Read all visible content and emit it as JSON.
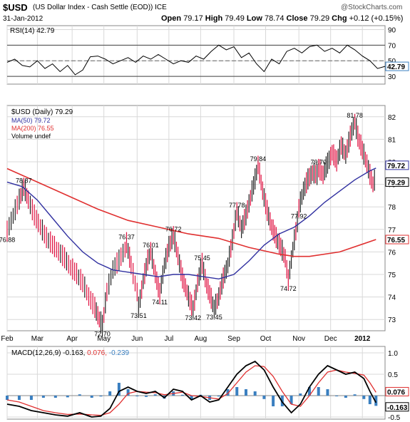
{
  "header": {
    "symbol": "$USD",
    "description": "(US Dollar Index - Cash Settle (EOD)) ICE",
    "watermark": "@StockCharts.com",
    "date": "31-Jan-2012",
    "quote_labels": {
      "open": "Open",
      "high": "High",
      "low": "Low",
      "close": "Close",
      "chg": "Chg"
    },
    "quote_values": {
      "open": "79.17",
      "high": "79.49",
      "low": "78.74",
      "close": "79.29",
      "chg": "+0.12 (+0.15%)"
    }
  },
  "colors": {
    "price_up": "#b0b0b0",
    "price_down": "#e01040",
    "ma50": "#3030a0",
    "ma200": "#e03030",
    "macd": "#000000",
    "signal": "#e03030",
    "histogram": "#3a7fc0",
    "rsi": "#000000",
    "grid": "#d8d8d8"
  },
  "chart_data": [
    {
      "type": "line",
      "panel": "rsi",
      "legend": "RSI(14) 42.79",
      "ylim": [
        20,
        95
      ],
      "levels": [
        30,
        70
      ],
      "yticks": [
        "90",
        "70",
        "50",
        "30"
      ],
      "last_label": "42.79",
      "x": [
        0,
        5,
        10,
        15,
        20,
        25,
        30,
        35,
        40,
        45,
        50,
        55,
        60,
        65,
        70,
        75,
        80,
        85,
        90,
        95,
        100,
        105,
        110,
        115,
        120,
        125,
        130,
        135,
        140,
        145,
        150,
        155,
        160,
        165,
        170,
        175,
        180,
        185,
        190,
        195,
        200,
        205,
        210,
        215,
        220,
        225,
        230,
        235,
        240,
        245,
        250
      ],
      "values": [
        48,
        52,
        44,
        42,
        50,
        40,
        46,
        36,
        44,
        32,
        38,
        55,
        56,
        52,
        46,
        50,
        54,
        48,
        56,
        52,
        58,
        52,
        46,
        50,
        48,
        56,
        52,
        62,
        70,
        64,
        68,
        54,
        60,
        46,
        36,
        52,
        46,
        62,
        66,
        60,
        68,
        70,
        62,
        66,
        60,
        70,
        64,
        56,
        50,
        40,
        42.79
      ]
    },
    {
      "type": "line",
      "panel": "price",
      "legend": {
        "main": "$USD (Daily) 79.29",
        "ma50": "MA(50) 79.72",
        "ma200": "MA(200) 76.55",
        "volume": "Volume undef"
      },
      "ylim": [
        72.5,
        82.5
      ],
      "yticks": [
        "82",
        "81",
        "80",
        "79",
        "78",
        "77",
        "76",
        "75",
        "74",
        "73"
      ],
      "xticks": [
        {
          "x": 0,
          "label": "Feb"
        },
        {
          "x": 20,
          "label": "Mar"
        },
        {
          "x": 43,
          "label": "Apr"
        },
        {
          "x": 64,
          "label": "May"
        },
        {
          "x": 86,
          "label": "Jun"
        },
        {
          "x": 107,
          "label": "Jul"
        },
        {
          "x": 128,
          "label": "Aug"
        },
        {
          "x": 150,
          "label": "Sep"
        },
        {
          "x": 171,
          "label": "Oct"
        },
        {
          "x": 193,
          "label": "Nov"
        },
        {
          "x": 214,
          "label": "Dec"
        },
        {
          "x": 235,
          "label": "2012"
        }
      ],
      "right_labels": {
        "ma50": "79.72",
        "close": "79.29",
        "ma200": "76.55"
      },
      "annotations": [
        {
          "x": 0,
          "y": 76.88,
          "label": "76.88"
        },
        {
          "x": 11,
          "y": 78.87,
          "label": "78.87"
        },
        {
          "x": 63,
          "y": 72.7,
          "label": "72.70"
        },
        {
          "x": 79,
          "y": 76.37,
          "label": "76.37"
        },
        {
          "x": 87,
          "y": 73.51,
          "label": "73.51"
        },
        {
          "x": 95,
          "y": 76.01,
          "label": "76.01"
        },
        {
          "x": 101,
          "y": 74.11,
          "label": "74.11"
        },
        {
          "x": 110,
          "y": 76.72,
          "label": "76.72"
        },
        {
          "x": 123,
          "y": 73.42,
          "label": "73.42"
        },
        {
          "x": 129,
          "y": 75.45,
          "label": "75.45"
        },
        {
          "x": 137,
          "y": 73.45,
          "label": "73.45"
        },
        {
          "x": 152,
          "y": 77.78,
          "label": "77.78"
        },
        {
          "x": 166,
          "y": 79.84,
          "label": "79.84"
        },
        {
          "x": 186,
          "y": 74.72,
          "label": "74.72"
        },
        {
          "x": 193,
          "y": 77.92,
          "label": "77.92"
        },
        {
          "x": 206,
          "y": 79.7,
          "label": "79.70"
        },
        {
          "x": 230,
          "y": 81.78,
          "label": "81.78"
        }
      ],
      "series": [
        {
          "name": "$USD",
          "x": [
            0,
            4,
            8,
            11,
            14,
            18,
            22,
            26,
            30,
            34,
            38,
            42,
            46,
            50,
            54,
            58,
            61,
            63,
            66,
            70,
            74,
            78,
            79,
            82,
            86,
            87,
            90,
            93,
            95,
            98,
            101,
            104,
            107,
            110,
            113,
            116,
            119,
            122,
            123,
            126,
            129,
            132,
            135,
            137,
            140,
            143,
            146,
            149,
            152,
            155,
            158,
            161,
            164,
            166,
            169,
            172,
            175,
            178,
            181,
            184,
            186,
            189,
            192,
            193,
            196,
            199,
            202,
            205,
            206,
            209,
            212,
            215,
            218,
            221,
            224,
            227,
            230,
            232,
            235,
            238,
            240,
            242,
            244
          ],
          "values": [
            76.88,
            77.6,
            78.3,
            78.87,
            78.3,
            77.6,
            77.1,
            76.6,
            76.3,
            76.0,
            75.7,
            75.3,
            75.0,
            74.6,
            74.0,
            73.5,
            73.0,
            72.7,
            74.2,
            75.2,
            75.6,
            76.1,
            76.37,
            75.4,
            74.2,
            73.51,
            74.7,
            75.6,
            76.01,
            75.0,
            74.11,
            75.4,
            76.2,
            76.72,
            75.8,
            74.8,
            74.2,
            73.6,
            73.42,
            74.6,
            75.45,
            74.5,
            73.9,
            73.45,
            74.0,
            74.8,
            75.4,
            76.5,
            77.78,
            77.0,
            77.6,
            78.4,
            79.2,
            79.84,
            78.7,
            77.8,
            77.1,
            76.6,
            76.2,
            75.7,
            74.72,
            76.1,
            77.3,
            77.92,
            78.7,
            79.2,
            79.5,
            79.4,
            79.7,
            79.4,
            79.9,
            80.4,
            80.0,
            80.7,
            80.3,
            81.1,
            81.78,
            81.1,
            80.5,
            79.9,
            79.4,
            79.0,
            79.29
          ]
        },
        {
          "name": "MA(50)",
          "x": [
            0,
            10,
            20,
            30,
            40,
            50,
            60,
            70,
            80,
            90,
            100,
            110,
            120,
            130,
            140,
            150,
            160,
            170,
            180,
            190,
            200,
            210,
            220,
            230,
            240,
            244
          ],
          "values": [
            79.1,
            78.9,
            78.3,
            77.5,
            76.7,
            76.0,
            75.5,
            75.2,
            75.1,
            75.0,
            74.9,
            75.0,
            75.0,
            74.9,
            74.8,
            75.0,
            75.6,
            76.3,
            76.8,
            77.1,
            77.6,
            78.2,
            78.7,
            79.2,
            79.6,
            79.72
          ]
        },
        {
          "name": "MA(200)",
          "x": [
            0,
            20,
            40,
            60,
            80,
            100,
            120,
            140,
            160,
            180,
            190,
            200,
            220,
            244
          ],
          "values": [
            79.7,
            79.1,
            78.5,
            77.9,
            77.4,
            77.1,
            76.8,
            76.6,
            76.2,
            75.9,
            75.8,
            75.8,
            76.0,
            76.55
          ]
        }
      ]
    },
    {
      "type": "line",
      "panel": "macd",
      "legend": {
        "main": "MACD(12,26,9)",
        "macd": "-0.163,",
        "signal": "0.076,",
        "histogram": "-0.239"
      },
      "ylim": [
        -0.55,
        1.15
      ],
      "yticks": [
        "1.0",
        "0.5",
        "-0.5"
      ],
      "right_labels": {
        "signal": "0.076",
        "macd": "-0.163"
      },
      "x": [
        0,
        8,
        16,
        24,
        32,
        40,
        48,
        56,
        62,
        68,
        74,
        80,
        86,
        92,
        98,
        104,
        110,
        116,
        122,
        128,
        134,
        140,
        146,
        152,
        158,
        164,
        170,
        176,
        182,
        188,
        194,
        200,
        206,
        212,
        218,
        224,
        230,
        236,
        240,
        244
      ],
      "series": [
        {
          "name": "MACD",
          "values": [
            -0.2,
            -0.25,
            -0.35,
            -0.4,
            -0.45,
            -0.48,
            -0.4,
            -0.5,
            -0.48,
            -0.3,
            0.1,
            0.2,
            0.1,
            0.05,
            0.1,
            -0.05,
            0.15,
            0.1,
            -0.1,
            0.0,
            -0.15,
            -0.1,
            0.2,
            0.5,
            0.7,
            0.8,
            0.6,
            0.2,
            -0.15,
            -0.4,
            -0.2,
            0.2,
            0.5,
            0.7,
            0.6,
            0.5,
            0.55,
            0.4,
            0.1,
            -0.163
          ]
        },
        {
          "name": "Signal",
          "values": [
            -0.1,
            -0.15,
            -0.25,
            -0.35,
            -0.4,
            -0.44,
            -0.43,
            -0.45,
            -0.46,
            -0.4,
            -0.2,
            0.05,
            0.1,
            0.08,
            0.07,
            0.02,
            0.05,
            0.08,
            0.0,
            -0.02,
            -0.05,
            -0.08,
            0.05,
            0.3,
            0.55,
            0.7,
            0.68,
            0.45,
            0.1,
            -0.2,
            -0.25,
            0.0,
            0.3,
            0.55,
            0.6,
            0.55,
            0.52,
            0.48,
            0.3,
            0.076
          ]
        },
        {
          "name": "Histogram",
          "values": [
            -0.1,
            -0.1,
            -0.1,
            -0.05,
            -0.05,
            -0.04,
            0.03,
            -0.05,
            -0.02,
            0.1,
            0.3,
            0.15,
            0.0,
            -0.03,
            0.03,
            -0.07,
            0.1,
            0.02,
            -0.1,
            0.02,
            -0.1,
            -0.02,
            0.15,
            0.2,
            0.15,
            0.1,
            -0.08,
            -0.25,
            -0.25,
            -0.2,
            0.05,
            0.2,
            0.2,
            0.15,
            0.0,
            -0.05,
            0.03,
            -0.08,
            -0.2,
            -0.239
          ]
        }
      ]
    }
  ]
}
